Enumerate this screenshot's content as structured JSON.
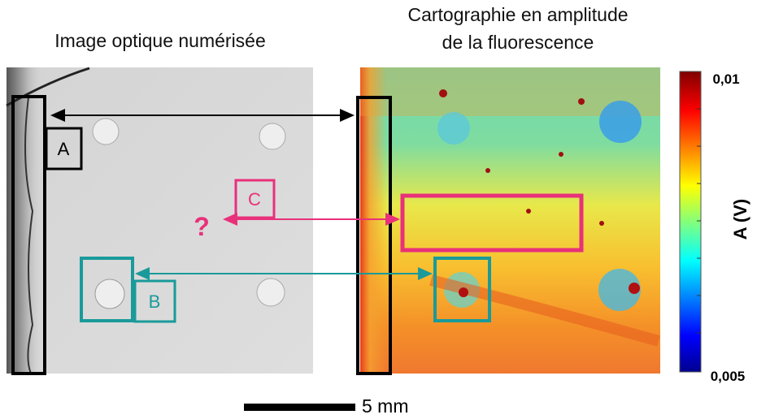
{
  "titles": {
    "optical": "Image optique numérisée",
    "map_line1": "Cartographie en amplitude",
    "map_line2": "de la fluorescence"
  },
  "labels": {
    "a": "A",
    "b": "B",
    "c": "C",
    "question": "?"
  },
  "colorbar": {
    "max": "0,01",
    "min": "0,005",
    "axis_label": "A (V)"
  },
  "scale_bar": "5 mm"
}
